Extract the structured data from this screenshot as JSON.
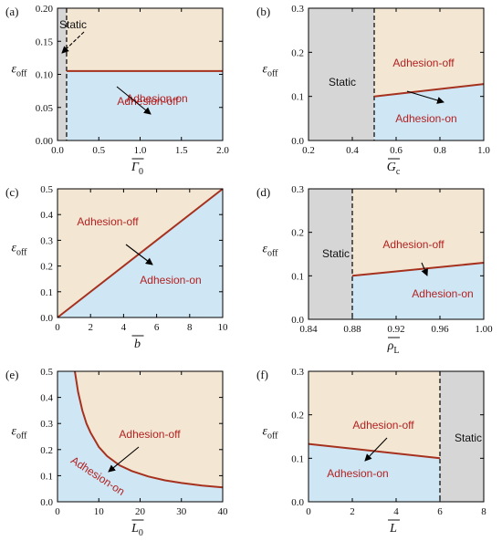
{
  "colors": {
    "off_fill": "#f3e6d2",
    "on_fill": "#cfe6f4",
    "static_fill": "#d6d6d6",
    "boundary": "#a5311e",
    "arrow": "#000000"
  },
  "chart_data": [
    {
      "type": "area",
      "panel": "(a)",
      "xlabel": "Γ",
      "xsub": "0",
      "ylabel": "ε",
      "ysub": "off",
      "xlim": [
        0,
        2.0
      ],
      "ylim": [
        0,
        0.2
      ],
      "xticks": [
        0.0,
        0.5,
        1.0,
        1.5,
        2.0
      ],
      "xtick_labels": [
        "0.0",
        "0.5",
        "1.0",
        "1.5",
        "2.0"
      ],
      "yticks": [
        0.0,
        0.05,
        0.1,
        0.15,
        0.2
      ],
      "ytick_labels": [
        "0.00",
        "0.05",
        "0.10",
        "0.15",
        "0.20"
      ],
      "static_region": [
        0,
        0.11
      ],
      "static_side": "left",
      "boundary": {
        "x": [
          0.11,
          2.0
        ],
        "y": [
          0.105,
          0.105
        ]
      },
      "labels": {
        "static": "Static",
        "off": "Adhesion-off",
        "on": "Adhesion-on"
      }
    },
    {
      "type": "area",
      "panel": "(b)",
      "xlabel": "G",
      "xsub": "c",
      "ylabel": "ε",
      "ysub": "off",
      "xlim": [
        0.2,
        1.0
      ],
      "ylim": [
        0,
        0.3
      ],
      "xticks": [
        0.2,
        0.4,
        0.6,
        0.8,
        1.0
      ],
      "xtick_labels": [
        "0.2",
        "0.4",
        "0.6",
        "0.8",
        "1.0"
      ],
      "yticks": [
        0.0,
        0.1,
        0.2,
        0.3
      ],
      "ytick_labels": [
        "0.0",
        "0.1",
        "0.2",
        "0.3"
      ],
      "static_region": [
        0.2,
        0.5
      ],
      "static_side": "left",
      "boundary": {
        "x": [
          0.5,
          1.0
        ],
        "y": [
          0.1,
          0.128
        ]
      },
      "labels": {
        "static": "Static",
        "off": "Adhesion-off",
        "on": "Adhesion-on"
      }
    },
    {
      "type": "area",
      "panel": "(c)",
      "xlabel": "b",
      "xsub": "",
      "ylabel": "ε",
      "ysub": "off",
      "xlim": [
        0,
        10
      ],
      "ylim": [
        0,
        0.5
      ],
      "xticks": [
        0,
        2,
        4,
        6,
        8,
        10
      ],
      "xtick_labels": [
        "0",
        "2",
        "4",
        "6",
        "8",
        "10"
      ],
      "yticks": [
        0.0,
        0.1,
        0.2,
        0.3,
        0.4,
        0.5
      ],
      "ytick_labels": [
        "0.0",
        "0.1",
        "0.2",
        "0.3",
        "0.4",
        "0.5"
      ],
      "static_region": null,
      "boundary": {
        "x": [
          0,
          10
        ],
        "y": [
          0,
          0.5
        ]
      },
      "labels": {
        "static": "",
        "off": "Adhesion-off",
        "on": "Adhesion-on"
      }
    },
    {
      "type": "area",
      "panel": "(d)",
      "xlabel": "ρ",
      "xsub": "L",
      "ylabel": "ε",
      "ysub": "off",
      "xlim": [
        0.84,
        1.0
      ],
      "ylim": [
        0,
        0.3
      ],
      "xticks": [
        0.84,
        0.88,
        0.92,
        0.96,
        1.0
      ],
      "xtick_labels": [
        "0.84",
        "0.88",
        "0.92",
        "0.96",
        "1.00"
      ],
      "yticks": [
        0.0,
        0.1,
        0.2,
        0.3
      ],
      "ytick_labels": [
        "0.0",
        "0.1",
        "0.2",
        "0.3"
      ],
      "static_region": [
        0.84,
        0.88
      ],
      "static_side": "left",
      "boundary": {
        "x": [
          0.88,
          1.0
        ],
        "y": [
          0.1,
          0.13
        ]
      },
      "labels": {
        "static": "Static",
        "off": "Adhesion-off",
        "on": "Adhesion-on"
      }
    },
    {
      "type": "area",
      "panel": "(e)",
      "xlabel": "L",
      "xsub": "0",
      "ylabel": "ε",
      "ysub": "off",
      "xlim": [
        0,
        40
      ],
      "ylim": [
        0,
        0.5
      ],
      "xticks": [
        0,
        10,
        20,
        30,
        40
      ],
      "xtick_labels": [
        "0",
        "10",
        "20",
        "30",
        "40"
      ],
      "yticks": [
        0.0,
        0.1,
        0.2,
        0.3,
        0.4,
        0.5
      ],
      "ytick_labels": [
        "0.0",
        "0.1",
        "0.2",
        "0.3",
        "0.4",
        "0.5"
      ],
      "static_region": null,
      "boundary": {
        "x": [
          4.2,
          5,
          6,
          7,
          8,
          10,
          12,
          15,
          18,
          22,
          26,
          30,
          35,
          40
        ],
        "y": [
          0.5,
          0.42,
          0.35,
          0.3,
          0.265,
          0.21,
          0.175,
          0.14,
          0.118,
          0.097,
          0.082,
          0.072,
          0.062,
          0.055
        ]
      },
      "labels": {
        "static": "",
        "off": "Adhesion-off",
        "on": "Adhesion-on"
      }
    },
    {
      "type": "area",
      "panel": "(f)",
      "xlabel": "L",
      "xsub": "",
      "ylabel": "ε",
      "ysub": "off",
      "xlim": [
        0,
        8
      ],
      "ylim": [
        0,
        0.3
      ],
      "xticks": [
        0,
        2,
        4,
        6,
        8
      ],
      "xtick_labels": [
        "0",
        "2",
        "4",
        "6",
        "8"
      ],
      "yticks": [
        0.0,
        0.1,
        0.2,
        0.3
      ],
      "ytick_labels": [
        "0.0",
        "0.1",
        "0.2",
        "0.3"
      ],
      "static_region": [
        6,
        8
      ],
      "static_side": "right",
      "boundary": {
        "x": [
          0,
          6
        ],
        "y": [
          0.133,
          0.1
        ]
      },
      "labels": {
        "static": "Static",
        "off": "Adhesion-off",
        "on": "Adhesion-on"
      }
    }
  ]
}
